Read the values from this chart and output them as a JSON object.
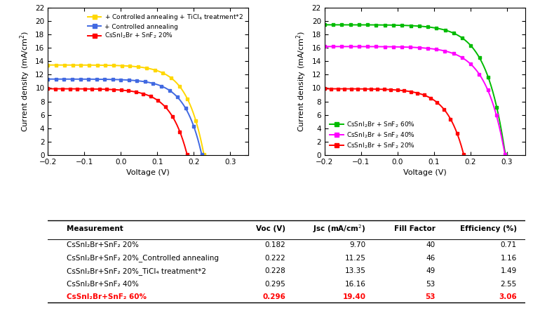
{
  "left_curves": [
    {
      "label": "+ Controlled annealing + TiCl$_4$ treatment*2",
      "color": "#FFD700",
      "jsc": 13.35,
      "voc": 0.228,
      "n": 1.8,
      "marker": "s"
    },
    {
      "label": "+ Controlled annealing",
      "color": "#4169E1",
      "jsc": 11.25,
      "voc": 0.222,
      "n": 1.8,
      "marker": "s"
    },
    {
      "label": "CsSnI$_2$Br + SnF$_2$ 20%",
      "color": "#FF0000",
      "jsc": 9.7,
      "voc": 0.182,
      "n": 1.8,
      "marker": "s"
    }
  ],
  "right_curves": [
    {
      "label": "CsSnI$_2$Br + SnF$_2$ 60%",
      "color": "#00BB00",
      "jsc": 19.4,
      "voc": 0.296,
      "n": 2.0,
      "marker": "s"
    },
    {
      "label": "CsSnI$_2$Br + SnF$_2$ 40%",
      "color": "#FF00FF",
      "jsc": 16.16,
      "voc": 0.295,
      "n": 2.0,
      "marker": "s"
    },
    {
      "label": "CsSnI$_2$Br + SnF$_2$ 20%",
      "color": "#FF0000",
      "jsc": 9.7,
      "voc": 0.182,
      "n": 1.8,
      "marker": "s"
    }
  ],
  "xlabel": "Voltage (V)",
  "ylabel": "Current density (mA/cm$^2$)",
  "xlim": [
    -0.2,
    0.35
  ],
  "ylim": [
    0,
    22
  ],
  "xticks": [
    -0.2,
    -0.1,
    0.0,
    0.1,
    0.2,
    0.3
  ],
  "yticks": [
    0,
    2,
    4,
    6,
    8,
    10,
    12,
    14,
    16,
    18,
    20,
    22
  ],
  "table_headers": [
    "Measurement",
    "Voc (V)",
    "Jsc (mA/cm$^2$)",
    "Fill Factor",
    "Efficiency (%)"
  ],
  "table_rows": [
    [
      "CsSnI₂Br+SnF₂ 20%",
      "0.182",
      "9.70",
      "40",
      "0.71"
    ],
    [
      "CsSnI₂Br+SnF₂ 20%_Controlled annealing",
      "0.222",
      "11.25",
      "46",
      "1.16"
    ],
    [
      "CsSnI₂Br+SnF₂ 20%_TiCl₄ treatment*2",
      "0.228",
      "13.35",
      "49",
      "1.49"
    ],
    [
      "CsSnI₂Br+SnF₂ 40%",
      "0.295",
      "16.16",
      "53",
      "2.55"
    ],
    [
      "CsSnI₂Br+SnF₂ 60%",
      "0.296",
      "19.40",
      "53",
      "3.06"
    ]
  ],
  "table_row_colors": [
    "black",
    "black",
    "black",
    "black",
    "red"
  ]
}
